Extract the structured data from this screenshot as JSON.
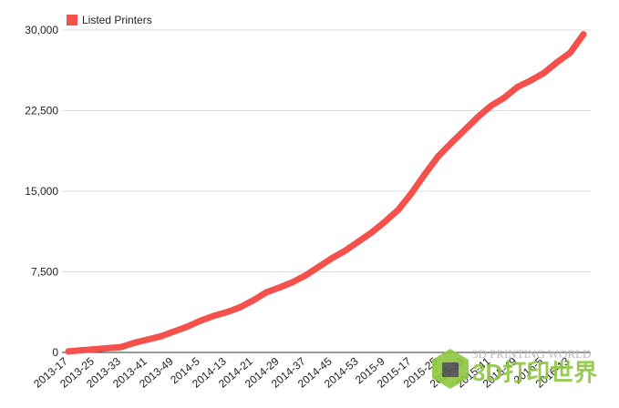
{
  "chart_data": {
    "type": "line",
    "categories": [
      "2013-17",
      null,
      "2013-25",
      null,
      "2013-33",
      null,
      "2013-41",
      null,
      "2013-49",
      null,
      "2014-5",
      null,
      "2014-13",
      null,
      "2014-21",
      null,
      "2014-29",
      null,
      "2014-37",
      null,
      "2014-45",
      null,
      "2014-53",
      null,
      "2015-9",
      null,
      "2015-17",
      null,
      "2015-25",
      null,
      "2015-33",
      null,
      "2015-41",
      null,
      "2015-49",
      null,
      "2016-5",
      null,
      "2016-13",
      null
    ],
    "series": [
      {
        "name": "Listed Printers",
        "color": "#f4514d",
        "values": [
          100,
          200,
          300,
          400,
          500,
          900,
          1200,
          1500,
          1950,
          2400,
          2950,
          3400,
          3750,
          4200,
          4850,
          5600,
          6050,
          6550,
          7200,
          8000,
          8800,
          9500,
          10350,
          11200,
          12200,
          13300,
          14850,
          16600,
          18250,
          19500,
          20700,
          21900,
          22950,
          23700,
          24700,
          25300,
          26000,
          27000,
          27900,
          29600
        ]
      }
    ],
    "ylim": [
      0,
      30000
    ],
    "yticks": [
      0,
      {
        "value": 7500,
        "label": "7,500"
      },
      {
        "value": 15000,
        "label": "15,000"
      },
      {
        "value": 22500,
        "label": "22,500"
      },
      {
        "value": 30000,
        "label": "30,000"
      }
    ],
    "grid": true,
    "legend": "top-left"
  },
  "watermark": {
    "text": "3D PRINTING WORLD",
    "logo_text": "3D打印世界"
  }
}
